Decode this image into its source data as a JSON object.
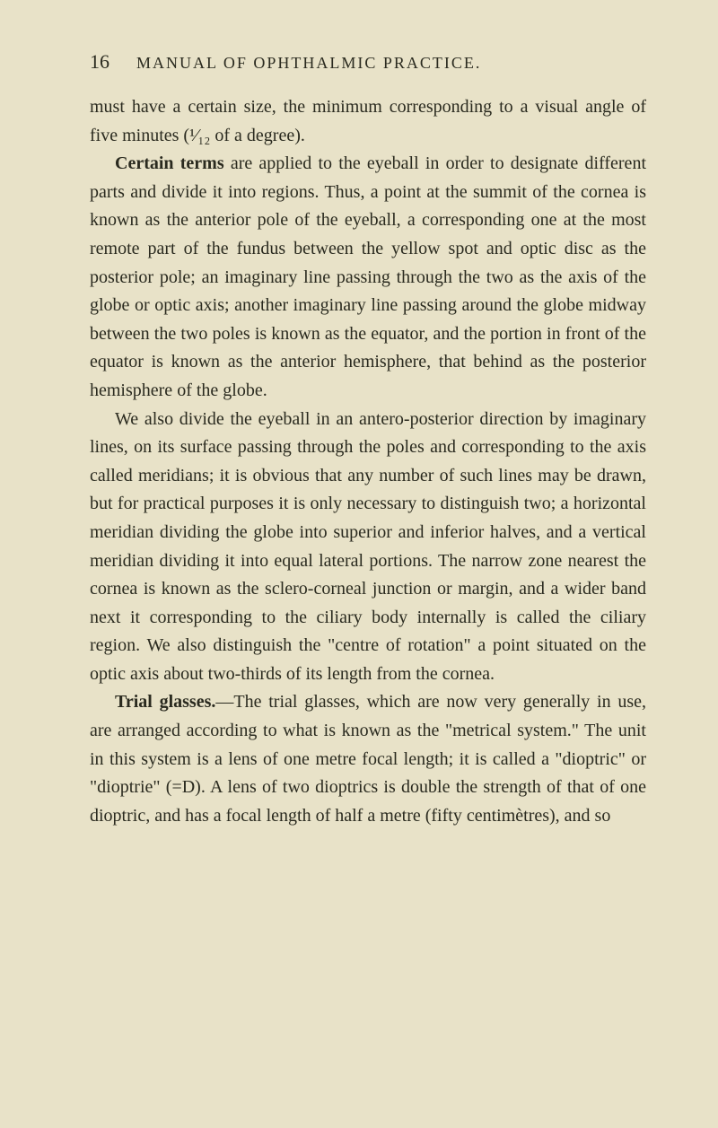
{
  "page_number": "16",
  "chapter_title": "MANUAL OF OPHTHALMIC PRACTICE.",
  "paragraphs": {
    "p1_a": "must have a certain size, the minimum corresponding to a visual angle of five minutes (¹⁄₁₂ of a degree).",
    "p2_term": "Certain terms",
    "p2_rest": " are applied to the eyeball in order to designate different parts and divide it into regions. Thus, a point at the summit of the cornea is known as the anterior pole of the eyeball, a corresponding one at the most remote part of the fundus between the yellow spot and optic disc as the posterior pole; an imaginary line passing through the two as the axis of the globe or optic axis; another imaginary line passing around the globe midway between the two poles is known as the equator, and the portion in front of the equator is known as the anterior hemisphere, that behind as the posterior hemisphere of the globe.",
    "p3": "We also divide the eyeball in an antero-posterior direction by imaginary lines, on its surface passing through the poles and corresponding to the axis called meridians; it is obvious that any number of such lines may be drawn, but for practical purposes it is only necessary to distinguish two; a horizontal meridian dividing the globe into superior and inferior halves, and a vertical meridian dividing it into equal lateral portions. The narrow zone nearest the cornea is known as the sclero-corneal junction or margin, and a wider band next it corresponding to the ciliary body internally is called the ciliary region. We also distinguish the \"centre of rotation\" a point situated on the optic axis about two-thirds of its length from the cornea.",
    "p4_term": "Trial glasses.",
    "p4_rest": "—The trial glasses, which are now very generally in use, are arranged according to what is known as the \"metrical system.\" The unit in this system is a lens of one metre focal length; it is called a \"dioptric\" or \"dioptrie\" (=D). A lens of two dioptrics is double the strength of that of one dioptric, and has a focal length of half a metre (fifty centimètres), and so"
  },
  "styling": {
    "background_color": "#e8e2c8",
    "text_color": "#2a2a1f",
    "body_fontsize": 20,
    "header_fontsize": 18,
    "page_number_fontsize": 22,
    "line_height": 1.58,
    "font_family": "Georgia, Times New Roman, serif",
    "text_indent": 28
  }
}
